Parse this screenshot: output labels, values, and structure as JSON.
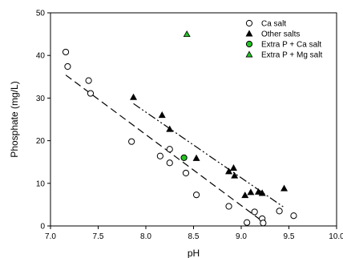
{
  "chart_data": {
    "type": "scatter",
    "title": "",
    "xlabel": "pH",
    "ylabel": "Phosphate (mg/L)",
    "xlim": [
      7.0,
      10.0
    ],
    "ylim": [
      0,
      50
    ],
    "xticks": [
      "7.0",
      "7.5",
      "8.0",
      "8.5",
      "9.0",
      "9.5",
      "10.0"
    ],
    "yticks": [
      "0",
      "10",
      "20",
      "30",
      "40",
      "50"
    ],
    "xtick_values": [
      7.0,
      7.5,
      8.0,
      8.5,
      9.0,
      9.5,
      10.0
    ],
    "ytick_values": [
      0,
      10,
      20,
      30,
      40,
      50
    ],
    "grid": false,
    "legend_position": "top-right",
    "series": [
      {
        "name": "Ca salt",
        "marker": "open-circle",
        "color": "#000000",
        "fill": "#ffffff",
        "points": [
          [
            7.16,
            40.8
          ],
          [
            7.18,
            37.4
          ],
          [
            7.4,
            34.1
          ],
          [
            7.42,
            31.1
          ],
          [
            7.85,
            19.8
          ],
          [
            8.15,
            16.4
          ],
          [
            8.25,
            18.0
          ],
          [
            8.25,
            14.8
          ],
          [
            8.42,
            12.4
          ],
          [
            8.53,
            7.3
          ],
          [
            8.87,
            4.6
          ],
          [
            9.06,
            0.8
          ],
          [
            9.14,
            3.3
          ],
          [
            9.22,
            1.7
          ],
          [
            9.23,
            0.7
          ],
          [
            9.4,
            3.5
          ],
          [
            9.55,
            2.4
          ]
        ]
      },
      {
        "name": "Other salts",
        "marker": "filled-triangle",
        "color": "#000000",
        "fill": "#000000",
        "points": [
          [
            7.87,
            30.2
          ],
          [
            8.17,
            26.0
          ],
          [
            8.25,
            22.7
          ],
          [
            8.53,
            15.9
          ],
          [
            8.87,
            12.8
          ],
          [
            8.92,
            13.6
          ],
          [
            8.93,
            11.8
          ],
          [
            9.04,
            7.2
          ],
          [
            9.1,
            7.9
          ],
          [
            9.18,
            8.0
          ],
          [
            9.22,
            7.7
          ],
          [
            9.45,
            8.8
          ]
        ]
      },
      {
        "name": "Extra P + Ca salt",
        "marker": "filled-circle",
        "color": "#000000",
        "fill": "#22c322",
        "points": [
          [
            8.4,
            16.0
          ]
        ]
      },
      {
        "name": "Extra P + Mg salt",
        "marker": "filled-triangle",
        "color": "#000000",
        "fill": "#22c322",
        "points": [
          [
            8.43,
            45.0
          ]
        ]
      }
    ],
    "regression_lines": [
      {
        "name": "Ca salt fit",
        "style": "dashed",
        "color": "#000000",
        "x": [
          7.16,
          9.24
        ],
        "y": [
          35.4,
          0.8
        ]
      },
      {
        "name": "Other salts fit",
        "style": "dash-dot-dot",
        "color": "#000000",
        "x": [
          7.87,
          9.44
        ],
        "y": [
          28.7,
          4.5
        ]
      }
    ]
  }
}
